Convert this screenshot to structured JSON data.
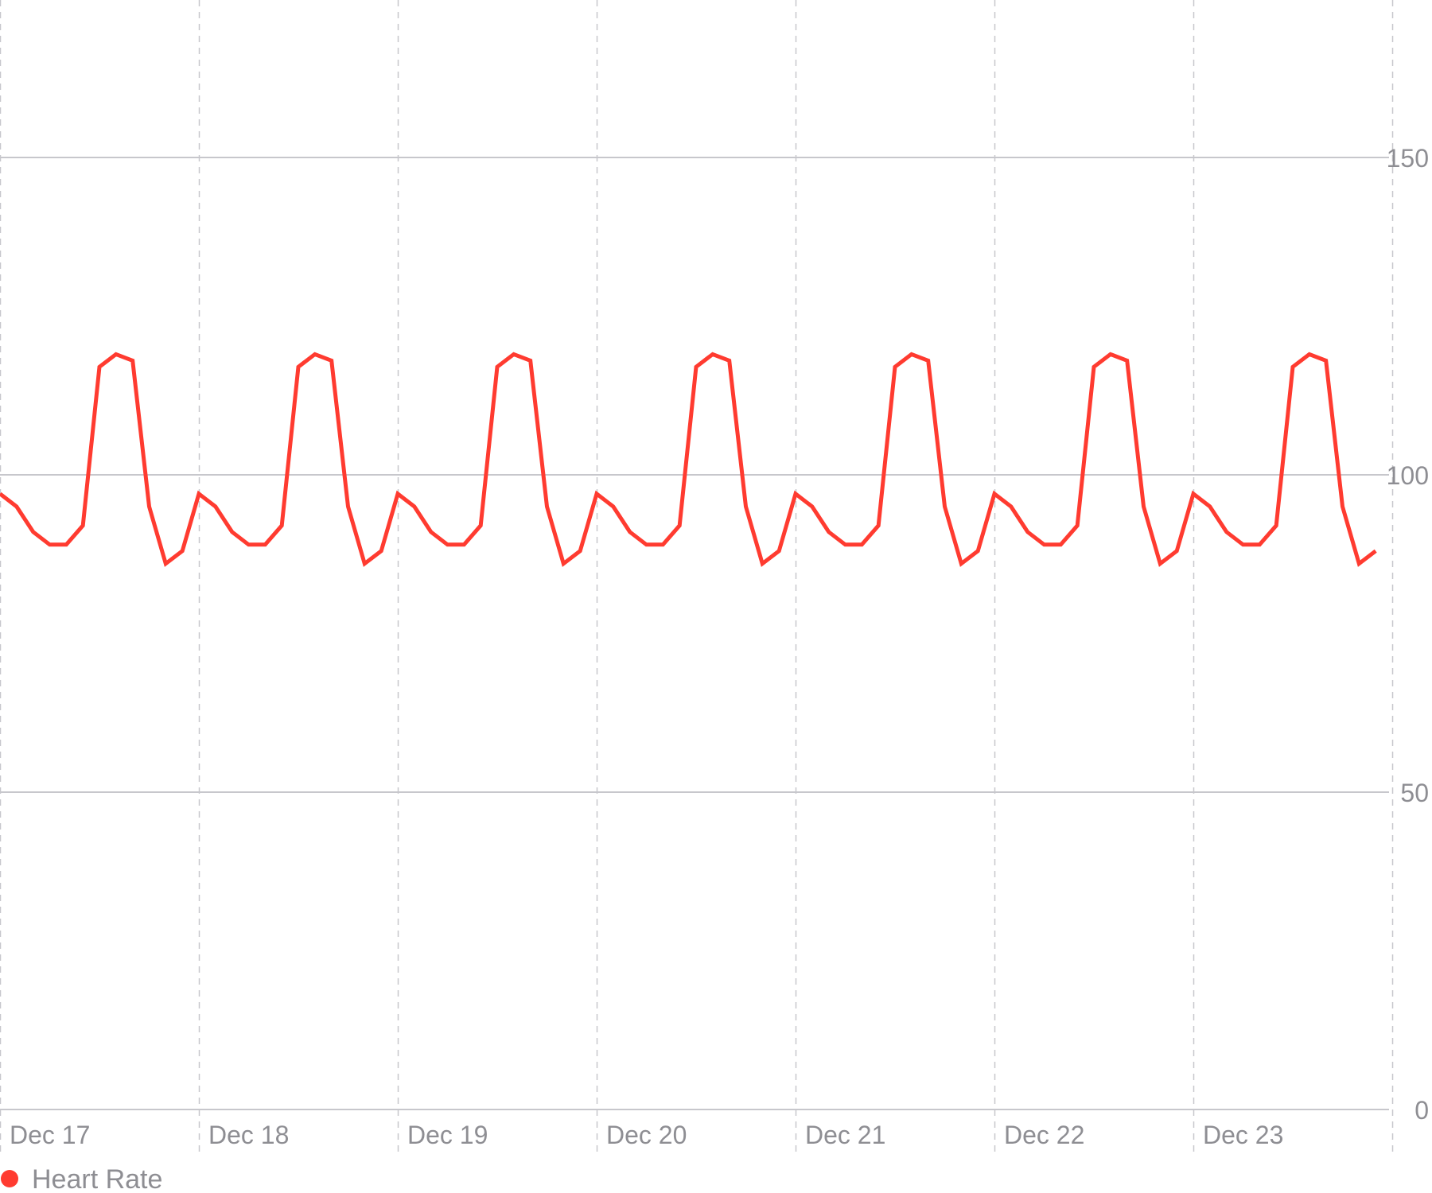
{
  "chart_data": {
    "type": "line",
    "x_labels": [
      "Dec 17",
      "Dec 18",
      "Dec 19",
      "Dec 20",
      "Dec 21",
      "Dec 22",
      "Dec 23"
    ],
    "y_ticks": [
      0,
      50,
      100,
      150
    ],
    "ylim": [
      0,
      175
    ],
    "grid": true,
    "legend_position": "bottom-left",
    "series": [
      {
        "name": "Heart Rate",
        "color": "#ff3b30",
        "values": [
          97,
          95,
          91,
          89,
          89,
          92,
          117,
          119,
          118,
          95,
          86,
          88,
          97,
          95,
          91,
          89,
          89,
          92,
          117,
          119,
          118,
          95,
          86,
          88,
          97,
          95,
          91,
          89,
          89,
          92,
          117,
          119,
          118,
          95,
          86,
          88,
          97,
          95,
          91,
          89,
          89,
          92,
          117,
          119,
          118,
          95,
          86,
          88,
          97,
          95,
          91,
          89,
          89,
          92,
          117,
          119,
          118,
          95,
          86,
          88,
          97,
          95,
          91,
          89,
          89,
          92,
          117,
          119,
          118,
          95,
          86,
          88,
          97,
          95,
          91,
          89,
          89,
          92,
          117,
          119,
          118,
          95,
          86,
          88
        ]
      }
    ]
  },
  "legend": {
    "label": "Heart Rate",
    "color": "#ff3b30"
  },
  "colors": {
    "grid_solid": "#c7c7cc",
    "grid_dashed": "#c7c7cc",
    "tick_text": "#8e8e93"
  }
}
